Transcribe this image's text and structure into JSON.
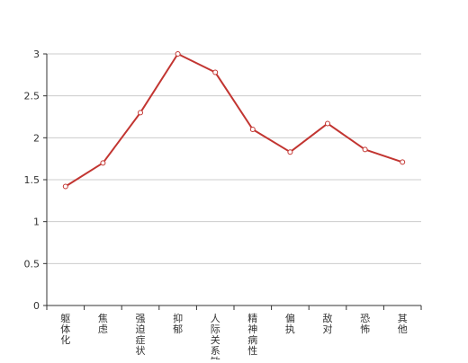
{
  "chart_data": {
    "type": "line",
    "title": "",
    "xlabel": "",
    "ylabel": "",
    "categories": [
      "躯体化",
      "焦虑",
      "强迫症状",
      "抑郁",
      "人际关系敏感",
      "精神病性",
      "偏执",
      "敌对",
      "恐怖",
      "其他"
    ],
    "series": [
      {
        "values": [
          1.42,
          1.7,
          2.3,
          3.0,
          2.78,
          2.1,
          1.83,
          2.17,
          1.86,
          1.71
        ]
      }
    ],
    "ylim": [
      0,
      3
    ],
    "y_ticks": [
      "0",
      "0.5",
      "1",
      "1.5",
      "2",
      "2.5",
      "3"
    ],
    "grid": true,
    "colors": {
      "line": "#c23531",
      "grid": "#cccccc",
      "axis": "#333333",
      "text": "#333333"
    }
  }
}
